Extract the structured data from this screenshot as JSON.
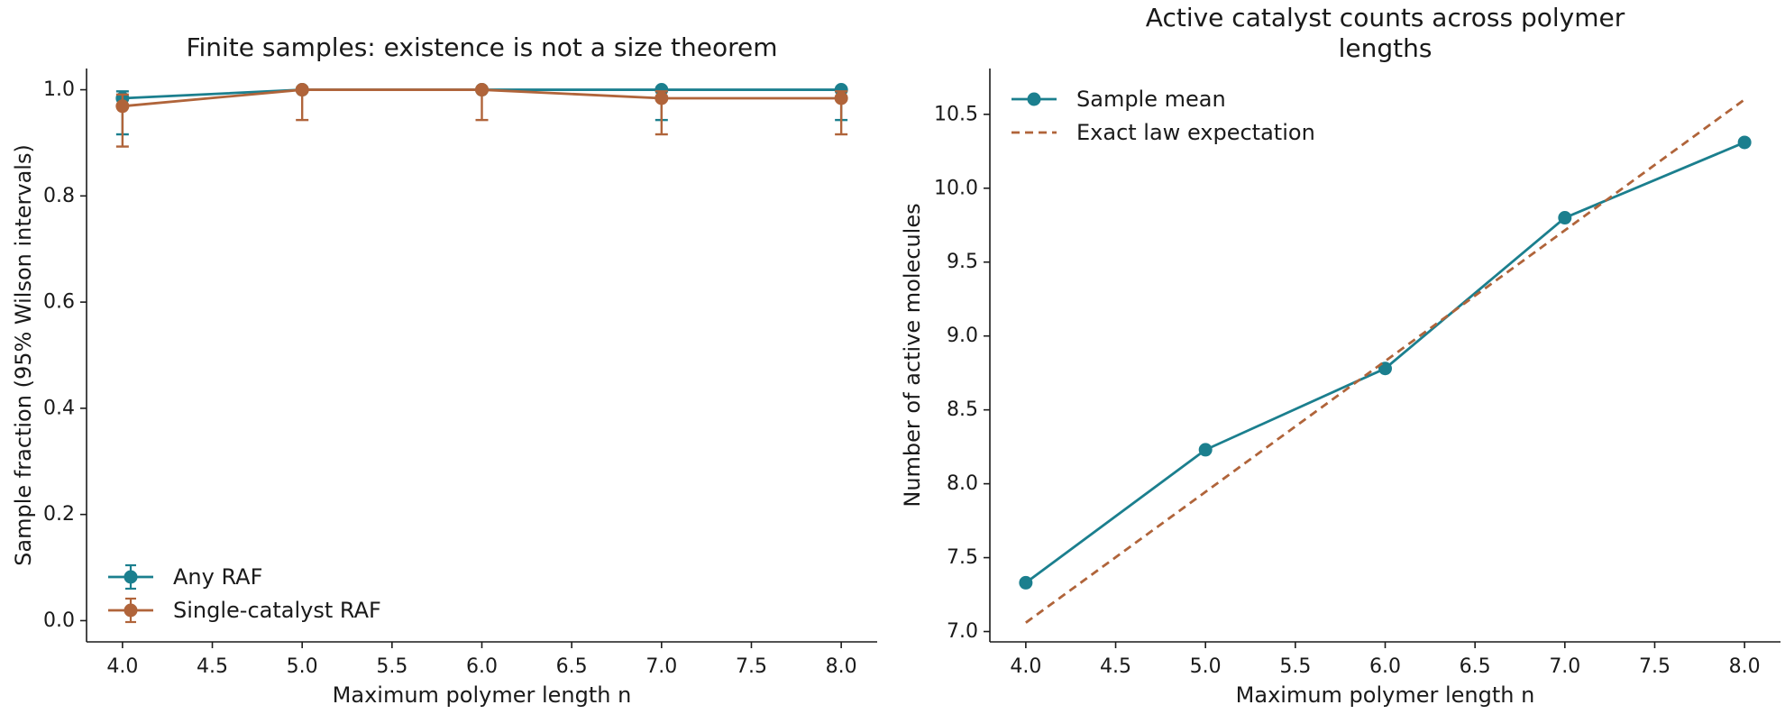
{
  "chart_data": [
    {
      "type": "line",
      "title": "Finite samples: existence is not a size theorem",
      "xlabel": "Maximum polymer length n",
      "ylabel": "Sample fraction (95% Wilson intervals)",
      "xlim": [
        3.8,
        8.2
      ],
      "ylim": [
        -0.04,
        1.04
      ],
      "xticks": [
        "4.0",
        "4.5",
        "5.0",
        "5.5",
        "6.0",
        "6.5",
        "7.0",
        "7.5",
        "8.0"
      ],
      "yticks": [
        "0.0",
        "0.2",
        "0.4",
        "0.6",
        "0.8",
        "1.0"
      ],
      "legend_position": "lower-left",
      "series": [
        {
          "name": "Any RAF",
          "color": "#1b7f8e",
          "x": [
            4,
            5,
            6,
            7,
            8
          ],
          "y": [
            0.984,
            1.0,
            1.0,
            1.0,
            1.0
          ],
          "err_low": [
            0.916,
            1.0,
            1.0,
            0.943,
            0.943
          ],
          "err_high": [
            0.997,
            1.0,
            1.0,
            1.0,
            1.0
          ]
        },
        {
          "name": "Single-catalyst RAF",
          "color": "#b0643a",
          "x": [
            4,
            5,
            6,
            7,
            8
          ],
          "y": [
            0.969,
            1.0,
            1.0,
            0.984,
            0.984
          ],
          "err_low": [
            0.893,
            0.943,
            0.943,
            0.916,
            0.916
          ],
          "err_high": [
            0.991,
            1.0,
            1.0,
            0.997,
            0.997
          ]
        }
      ]
    },
    {
      "type": "line",
      "title": "Active catalyst counts across polymer lengths",
      "xlabel": "Maximum polymer length n",
      "ylabel": "Number of active molecules",
      "xlim": [
        3.8,
        8.2
      ],
      "ylim": [
        6.93,
        10.81
      ],
      "xticks": [
        "4.0",
        "4.5",
        "5.0",
        "5.5",
        "6.0",
        "6.5",
        "7.0",
        "7.5",
        "8.0"
      ],
      "yticks": [
        "7.0",
        "7.5",
        "8.0",
        "8.5",
        "9.0",
        "9.5",
        "10.0",
        "10.5"
      ],
      "legend_position": "upper-left",
      "series": [
        {
          "name": "Sample mean",
          "color": "#1b7f8e",
          "style": "solid-markers",
          "x": [
            4,
            5,
            6,
            7,
            8
          ],
          "y": [
            7.33,
            8.23,
            8.78,
            9.8,
            10.31
          ]
        },
        {
          "name": "Exact law expectation",
          "color": "#b0643a",
          "style": "dashed",
          "x": [
            4,
            8
          ],
          "y": [
            7.06,
            10.6
          ]
        }
      ]
    }
  ]
}
